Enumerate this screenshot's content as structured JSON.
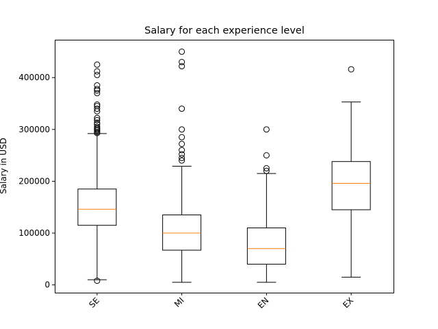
{
  "chart_data": {
    "type": "box",
    "title": "Salary for each experience level",
    "xlabel": "",
    "ylabel": "Salary in USD",
    "categories": [
      "SE",
      "MI",
      "EN",
      "EX"
    ],
    "ylim": [
      -15000,
      473000
    ],
    "yticks": [
      0,
      100000,
      200000,
      300000,
      400000
    ],
    "ytick_labels": [
      "0",
      "100000",
      "200000",
      "300000",
      "400000"
    ],
    "grid": false,
    "boxes": [
      {
        "label": "SE",
        "whisker_low": 10000,
        "q1": 115000,
        "median": 146000,
        "q3": 185000,
        "whisker_high": 292000,
        "fliers": [
          8000,
          293000,
          295000,
          298000,
          300000,
          302000,
          305000,
          310000,
          313000,
          318000,
          322000,
          335000,
          340000,
          345000,
          348000,
          370000,
          375000,
          378000,
          385000,
          405000,
          412000,
          425000
        ]
      },
      {
        "label": "MI",
        "whisker_low": 5000,
        "q1": 67000,
        "median": 100000,
        "q3": 135000,
        "whisker_high": 229000,
        "fliers": [
          240000,
          245000,
          252000,
          260000,
          272000,
          285000,
          300000,
          340000,
          422000,
          430000,
          450000
        ]
      },
      {
        "label": "EN",
        "whisker_low": 5000,
        "q1": 40000,
        "median": 70000,
        "q3": 110000,
        "whisker_high": 215000,
        "fliers": [
          220000,
          225000,
          250000,
          300000
        ]
      },
      {
        "label": "EX",
        "whisker_low": 15000,
        "q1": 145000,
        "median": 196000,
        "q3": 238000,
        "whisker_high": 353000,
        "fliers": [
          416000
        ]
      }
    ],
    "colors": {
      "box": "#000000",
      "median": "#ff7f0e",
      "flier": "#000000"
    }
  }
}
